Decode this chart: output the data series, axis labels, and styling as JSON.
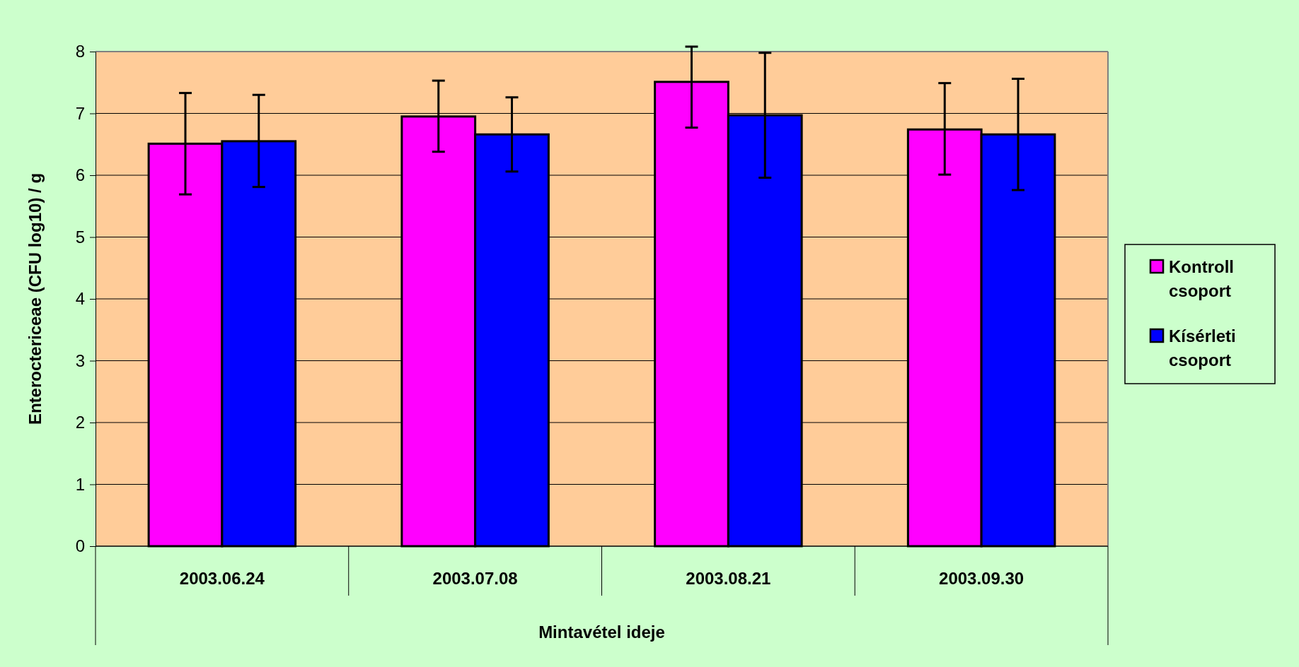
{
  "chart_data": {
    "type": "bar",
    "xlabel": "Mintavétel ideje",
    "ylabel": "Enteroctericeae (CFU log10) / g",
    "categories": [
      "2003.06.24",
      "2003.07.08",
      "2003.08.21",
      "2003.09.30"
    ],
    "series": [
      {
        "name": "Kontroll csoport",
        "color": "#ff00ff",
        "values": [
          6.51,
          6.95,
          7.51,
          6.74
        ],
        "errors": [
          [
            5.69,
            7.33
          ],
          [
            6.38,
            7.53
          ],
          [
            6.77,
            8.08
          ],
          [
            6.01,
            7.49
          ]
        ]
      },
      {
        "name": "Kísérleti csoport",
        "color": "#0000ff",
        "values": [
          6.55,
          6.66,
          6.97,
          6.66
        ],
        "errors": [
          [
            5.81,
            7.3
          ],
          [
            6.06,
            7.26
          ],
          [
            5.96,
            7.98
          ],
          [
            5.76,
            7.56
          ]
        ]
      }
    ],
    "ylim": [
      0,
      8
    ],
    "yticks": [
      0,
      1,
      2,
      3,
      4,
      5,
      6,
      7,
      8
    ],
    "grid": "y",
    "legend": "right"
  }
}
